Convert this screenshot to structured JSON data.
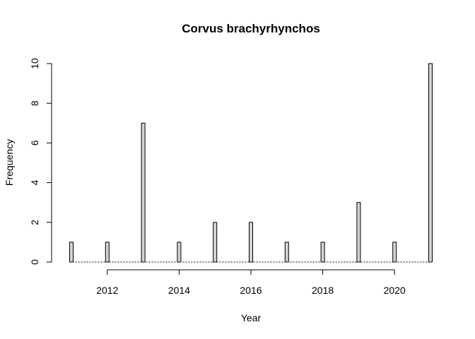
{
  "chart_data": {
    "type": "bar",
    "title": "Corvus brachyrhynchos",
    "xlabel": "Year",
    "ylabel": "Frequency",
    "x": [
      2011,
      2012,
      2013,
      2014,
      2015,
      2016,
      2017,
      2018,
      2019,
      2020,
      2021
    ],
    "values": [
      1,
      1,
      7,
      1,
      2,
      2,
      1,
      1,
      3,
      1,
      10
    ],
    "xlim": [
      2011,
      2021
    ],
    "ylim": [
      0,
      10
    ],
    "xticks": [
      2012,
      2014,
      2016,
      2018,
      2020
    ],
    "yticks": [
      0,
      2,
      4,
      6,
      8,
      10
    ],
    "bar_color": "#d3d3d3",
    "grid": false
  }
}
